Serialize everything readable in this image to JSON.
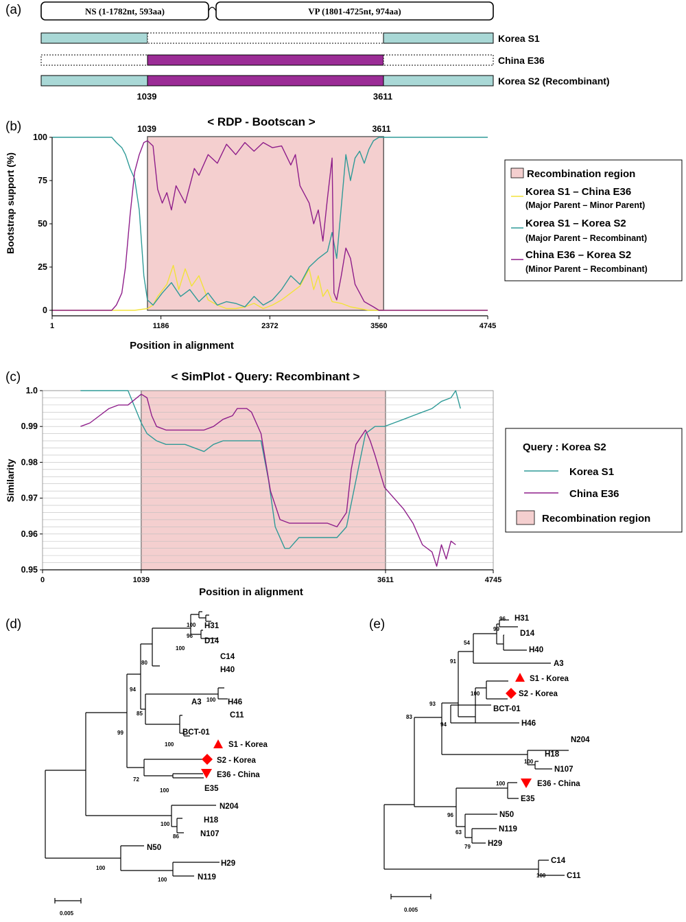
{
  "panel_labels": [
    "(a)",
    "(b)",
    "(c)",
    "(d)",
    "(e)"
  ],
  "panel_a": {
    "genes": [
      {
        "label": "NS (1-1782nt, 593aa)"
      },
      {
        "label": "VP (1801-4725nt, 974aa)"
      }
    ],
    "tracks": [
      {
        "label": "Korea S1"
      },
      {
        "label": "China E36"
      },
      {
        "label": "Korea S2 (Recombinant)"
      }
    ],
    "breakpoints": [
      "1039",
      "3611"
    ],
    "colors": {
      "parent_major": "#a9d8d6",
      "parent_minor": "#9b2c96"
    }
  },
  "chart_data": [
    {
      "type": "line",
      "title": "< RDP - Bootscan >",
      "xlabel": "Position in alignment",
      "ylabel": "Bootstrap support (%)",
      "xlim": [
        1,
        4745
      ],
      "ylim": [
        0,
        100
      ],
      "x_ticks": [
        "1",
        "1186",
        "2372",
        "3560",
        "4745"
      ],
      "y_ticks": [
        "0",
        "25",
        "50",
        "75",
        "100"
      ],
      "breakpoint_labels": [
        "1039",
        "3611"
      ],
      "region": [
        1039,
        3611
      ],
      "legend": [
        {
          "label": "Recombination region",
          "color": "#f4cfcf"
        },
        {
          "label": "Korea S1 – China E36",
          "sub": "(Major Parent – Minor Parent)",
          "color": "#f2e23a"
        },
        {
          "label": "Korea S1 – Korea S2",
          "sub": "(Major Parent – Recombinant)",
          "color": "#2e9a97"
        },
        {
          "label": "China E36 – Korea S2",
          "sub": "(Minor Parent – Recombinant)",
          "color": "#8e1d8a"
        }
      ],
      "series": [
        {
          "name": "Korea S1 – China E36",
          "color": "#f2e23a",
          "x": [
            1,
            700,
            900,
            1039,
            1100,
            1150,
            1250,
            1320,
            1380,
            1450,
            1520,
            1600,
            1700,
            1800,
            1900,
            2000,
            2100,
            2200,
            2300,
            2400,
            2500,
            2600,
            2700,
            2800,
            2850,
            2900,
            2950,
            3000,
            3050,
            3150,
            3250,
            3350,
            3450,
            3560,
            4745
          ],
          "y": [
            0,
            0,
            0,
            1,
            3,
            8,
            15,
            26,
            12,
            24,
            14,
            20,
            6,
            3,
            1,
            1,
            2,
            4,
            1,
            3,
            6,
            10,
            14,
            24,
            12,
            20,
            8,
            12,
            5,
            4,
            2,
            1,
            0,
            0,
            0
          ]
        },
        {
          "name": "Korea S1 – Korea S2",
          "color": "#2e9a97",
          "x": [
            1,
            550,
            650,
            700,
            760,
            800,
            850,
            900,
            950,
            1000,
            1039,
            1100,
            1200,
            1300,
            1400,
            1500,
            1600,
            1700,
            1800,
            1900,
            2000,
            2100,
            2200,
            2300,
            2400,
            2500,
            2600,
            2700,
            2800,
            2900,
            3000,
            3050,
            3100,
            3150,
            3200,
            3250,
            3300,
            3350,
            3400,
            3450,
            3500,
            3560,
            4745
          ],
          "y": [
            100,
            100,
            100,
            97,
            94,
            90,
            82,
            76,
            58,
            20,
            6,
            3,
            10,
            16,
            8,
            12,
            5,
            10,
            3,
            5,
            4,
            2,
            8,
            3,
            6,
            12,
            20,
            15,
            25,
            30,
            34,
            45,
            30,
            60,
            90,
            75,
            88,
            92,
            85,
            93,
            98,
            100,
            100
          ]
        },
        {
          "name": "China E36 – Korea S2",
          "color": "#8e1d8a",
          "x": [
            1,
            650,
            700,
            760,
            800,
            850,
            900,
            950,
            1000,
            1039,
            1100,
            1150,
            1200,
            1250,
            1300,
            1350,
            1450,
            1550,
            1600,
            1700,
            1800,
            1900,
            2000,
            2100,
            2200,
            2300,
            2400,
            2500,
            2600,
            2650,
            2700,
            2800,
            2850,
            2900,
            2950,
            3000,
            3050,
            3070,
            3100,
            3150,
            3200,
            3250,
            3300,
            3400,
            3500,
            3560,
            4745
          ],
          "y": [
            0,
            0,
            3,
            10,
            25,
            55,
            80,
            90,
            97,
            98,
            95,
            70,
            62,
            68,
            58,
            72,
            62,
            82,
            78,
            90,
            85,
            96,
            90,
            97,
            92,
            97,
            94,
            95,
            84,
            90,
            72,
            62,
            50,
            58,
            40,
            65,
            88,
            10,
            6,
            20,
            36,
            30,
            15,
            5,
            2,
            0,
            0
          ]
        }
      ]
    },
    {
      "type": "line",
      "title": "< SimPlot - Query: Recombinant >",
      "xlabel": "Position in alignment",
      "ylabel": "Similarity",
      "xlim": [
        0,
        4745
      ],
      "ylim": [
        0.95,
        1.0
      ],
      "x_ticks": [
        "0",
        "1039",
        "3611",
        "4745"
      ],
      "y_ticks": [
        "0.95",
        "0.96",
        "0.97",
        "0.98",
        "0.99",
        "1.0"
      ],
      "region": [
        1039,
        3611
      ],
      "grid": true,
      "legend": [
        {
          "label": "Query : Korea S2",
          "color": ""
        },
        {
          "label": "Korea S1",
          "color": "#2e9a97"
        },
        {
          "label": "China E36",
          "color": "#8e1d8a"
        },
        {
          "label": "Recombination region",
          "color": "#f4cfcf"
        }
      ],
      "series": [
        {
          "name": "Korea S1",
          "color": "#2e9a97",
          "x": [
            400,
            700,
            900,
            1039,
            1100,
            1200,
            1300,
            1500,
            1700,
            1800,
            1900,
            2000,
            2100,
            2200,
            2300,
            2380,
            2450,
            2550,
            2600,
            2700,
            2800,
            2900,
            3000,
            3100,
            3200,
            3300,
            3400,
            3500,
            3600,
            3700,
            3800,
            3900,
            4000,
            4100,
            4200,
            4300,
            4350,
            4400
          ],
          "y": [
            1.0,
            1.0,
            1.0,
            0.991,
            0.988,
            0.986,
            0.985,
            0.985,
            0.983,
            0.985,
            0.986,
            0.986,
            0.986,
            0.986,
            0.986,
            0.975,
            0.962,
            0.956,
            0.956,
            0.959,
            0.959,
            0.959,
            0.959,
            0.959,
            0.962,
            0.975,
            0.988,
            0.99,
            0.99,
            0.991,
            0.992,
            0.993,
            0.994,
            0.995,
            0.997,
            0.998,
            1.0,
            0.995
          ]
        },
        {
          "name": "China E36",
          "color": "#8e1d8a",
          "x": [
            400,
            500,
            600,
            700,
            800,
            900,
            1039,
            1100,
            1150,
            1200,
            1300,
            1500,
            1700,
            1800,
            1900,
            2000,
            2050,
            2150,
            2200,
            2300,
            2400,
            2500,
            2600,
            2700,
            2800,
            3000,
            3100,
            3200,
            3250,
            3300,
            3400,
            3450,
            3500,
            3600,
            3700,
            3800,
            3900,
            4000,
            4100,
            4150,
            4200,
            4250,
            4300,
            4350
          ],
          "y": [
            0.99,
            0.991,
            0.993,
            0.995,
            0.996,
            0.996,
            0.999,
            0.998,
            0.993,
            0.99,
            0.989,
            0.989,
            0.989,
            0.99,
            0.992,
            0.993,
            0.995,
            0.995,
            0.994,
            0.988,
            0.972,
            0.964,
            0.963,
            0.963,
            0.963,
            0.963,
            0.962,
            0.966,
            0.978,
            0.985,
            0.989,
            0.986,
            0.982,
            0.973,
            0.97,
            0.967,
            0.963,
            0.957,
            0.955,
            0.951,
            0.957,
            0.953,
            0.958,
            0.957
          ]
        }
      ]
    }
  ],
  "tree_d": {
    "scale": "0.005",
    "tips": [
      {
        "name": "H31"
      },
      {
        "name": "D14"
      },
      {
        "name": "C14"
      },
      {
        "name": "H40"
      },
      {
        "name": "A3"
      },
      {
        "name": "H46"
      },
      {
        "name": "C11"
      },
      {
        "name": "BCT-01"
      },
      {
        "name": "S1 - Korea"
      },
      {
        "name": "S2 - Korea"
      },
      {
        "name": "E36 - China"
      },
      {
        "name": "E35"
      },
      {
        "name": "N204"
      },
      {
        "name": "H18"
      },
      {
        "name": "N107"
      },
      {
        "name": "N50"
      },
      {
        "name": "H29"
      },
      {
        "name": "N119"
      }
    ],
    "support": [
      "100",
      "96",
      "100",
      "80",
      "94",
      "100",
      "85",
      "100",
      "99",
      "72",
      "100",
      "100",
      "86",
      "100",
      "100"
    ]
  },
  "tree_e": {
    "scale": "0.005",
    "tips": [
      {
        "name": "H31"
      },
      {
        "name": "D14"
      },
      {
        "name": "H40"
      },
      {
        "name": "A3"
      },
      {
        "name": "S1 - Korea"
      },
      {
        "name": "S2 - Korea"
      },
      {
        "name": "BCT-01"
      },
      {
        "name": "H46"
      },
      {
        "name": "N204"
      },
      {
        "name": "H18"
      },
      {
        "name": "N107"
      },
      {
        "name": "E36 - China"
      },
      {
        "name": "E35"
      },
      {
        "name": "N50"
      },
      {
        "name": "N119"
      },
      {
        "name": "H29"
      },
      {
        "name": "C14"
      },
      {
        "name": "C11"
      }
    ],
    "support": [
      "96",
      "99",
      "54",
      "91",
      "100",
      "93",
      "94",
      "83",
      "100",
      "100",
      "96",
      "63",
      "79",
      "100"
    ]
  }
}
